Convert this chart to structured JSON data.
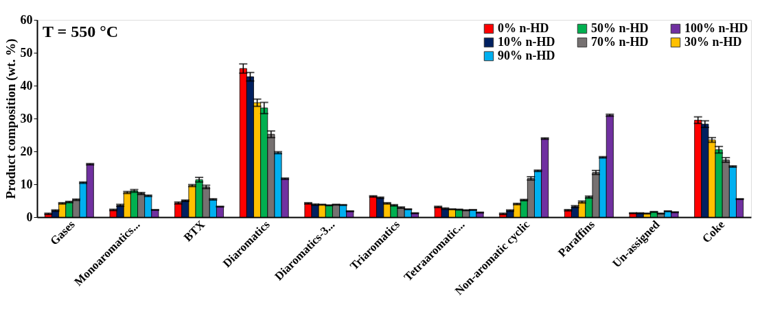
{
  "chart_data": {
    "type": "bar",
    "ylabel": "Product composition (wt. %)",
    "categories": [
      "Gases",
      "Monoaromatics...",
      "BTX",
      "Diaromatics",
      "Diaromatics-3...",
      "Triaromatics",
      "Tetraaromatic...",
      "Non-aromatic cyclic",
      "Paraffins",
      "Un-assigned",
      "Coke"
    ],
    "series": [
      {
        "name": "0% n-HD",
        "color": "#ff0000",
        "values": [
          1.0,
          2.2,
          4.3,
          45.2,
          4.2,
          6.3,
          3.1,
          1.0,
          2.1,
          1.2,
          29.5
        ],
        "errors": [
          0.2,
          0.2,
          0.3,
          1.4,
          0.2,
          0.2,
          0.2,
          0.2,
          0.2,
          0.1,
          1.0
        ]
      },
      {
        "name": "10% n-HD",
        "color": "#002060",
        "values": [
          2.0,
          3.6,
          5.0,
          42.7,
          3.8,
          5.9,
          2.6,
          2.0,
          3.2,
          1.2,
          28.3
        ],
        "errors": [
          0.2,
          0.3,
          0.2,
          1.3,
          0.2,
          0.2,
          0.2,
          0.2,
          0.3,
          0.1,
          1.0
        ]
      },
      {
        "name": "30% n-HD",
        "color": "#ffc000",
        "values": [
          4.2,
          7.5,
          9.6,
          34.8,
          3.8,
          4.2,
          2.4,
          4.0,
          4.6,
          1.1,
          23.5
        ],
        "errors": [
          0.2,
          0.3,
          0.3,
          1.1,
          0.1,
          0.2,
          0.1,
          0.2,
          0.3,
          0.1,
          0.7
        ]
      },
      {
        "name": "50% n-HD",
        "color": "#00b050",
        "values": [
          4.6,
          8.0,
          11.4,
          33.2,
          3.6,
          3.6,
          2.3,
          5.2,
          6.1,
          1.6,
          20.5
        ],
        "errors": [
          0.2,
          0.4,
          0.7,
          1.7,
          0.1,
          0.2,
          0.1,
          0.2,
          0.3,
          0.1,
          1.0
        ]
      },
      {
        "name": "70% n-HD",
        "color": "#767171",
        "values": [
          5.3,
          7.2,
          9.2,
          25.2,
          3.8,
          2.9,
          2.1,
          11.8,
          13.6,
          1.1,
          17.4
        ],
        "errors": [
          0.2,
          0.3,
          0.5,
          1.0,
          0.1,
          0.2,
          0.1,
          0.5,
          0.6,
          0.1,
          0.7
        ]
      },
      {
        "name": "90% n-HD",
        "color": "#00b0f0",
        "values": [
          10.5,
          6.5,
          5.4,
          19.6,
          3.7,
          2.4,
          2.2,
          14.1,
          18.2,
          1.8,
          15.4
        ],
        "errors": [
          0.2,
          0.2,
          0.2,
          0.3,
          0.1,
          0.1,
          0.1,
          0.2,
          0.2,
          0.1,
          0.2
        ]
      },
      {
        "name": "100% n-HD",
        "color": "#7030a0",
        "values": [
          16.1,
          2.2,
          3.2,
          11.7,
          1.8,
          1.2,
          1.4,
          23.9,
          31.0,
          1.5,
          5.5
        ],
        "errors": [
          0.2,
          0.1,
          0.1,
          0.2,
          0.1,
          0.1,
          0.1,
          0.2,
          0.3,
          0.1,
          0.1
        ]
      }
    ],
    "ylim": [
      0,
      60
    ],
    "yticks": [
      0,
      10,
      20,
      30,
      40,
      50,
      60
    ],
    "grid": false,
    "legend": "top right",
    "annotations": [
      "T = 550 °C"
    ]
  }
}
